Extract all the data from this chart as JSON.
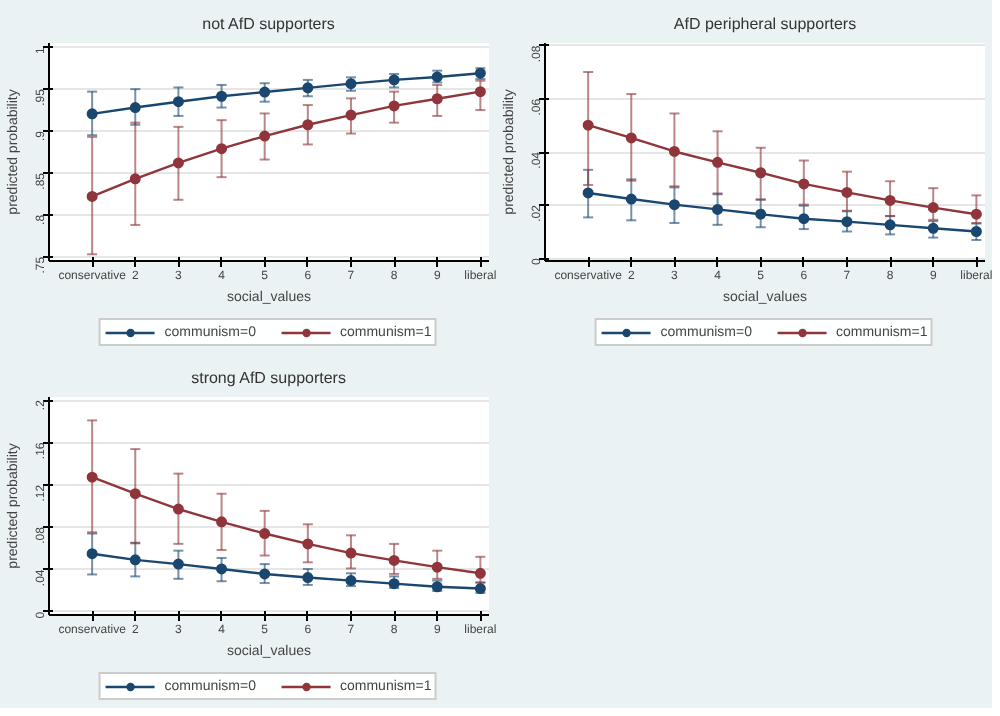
{
  "chart_data": [
    {
      "type": "line",
      "title": "not AfD supporters",
      "xlabel": "social_values",
      "ylabel": "predicted probability",
      "categories": [
        "conservative",
        "2",
        "3",
        "4",
        "5",
        "6",
        "7",
        "8",
        "9",
        "liberal"
      ],
      "ylim": [
        0.745,
        1.005
      ],
      "yticks": [
        {
          "value": 0.75,
          "label": ".75"
        },
        {
          "value": 0.8,
          "label": ".8"
        },
        {
          "value": 0.85,
          "label": ".85"
        },
        {
          "value": 0.9,
          "label": ".9"
        },
        {
          "value": 0.95,
          "label": ".95"
        },
        1
      ],
      "grid": "y",
      "legend": "bottom",
      "marker": "circle",
      "series": [
        {
          "name": "communism=0",
          "color": "#1a476f",
          "values": [
            0.9205,
            0.928,
            0.935,
            0.9415,
            0.9465,
            0.9515,
            0.9565,
            0.961,
            0.9645,
            0.969
          ],
          "errors": [
            [
              0.895,
              0.947
            ],
            [
              0.9075,
              0.95
            ],
            [
              0.918,
              0.952
            ],
            [
              0.928,
              0.955
            ],
            [
              0.935,
              0.957
            ],
            [
              0.9415,
              0.961
            ],
            [
              0.948,
              0.964
            ],
            [
              0.952,
              0.968
            ],
            [
              0.958,
              0.972
            ],
            [
              0.962,
              0.975
            ]
          ]
        },
        {
          "name": "communism=1",
          "color": "#90353b",
          "values": [
            0.822,
            0.843,
            0.862,
            0.879,
            0.894,
            0.9075,
            0.919,
            0.93,
            0.9385,
            0.947
          ],
          "errors": [
            [
              0.753,
              0.893
            ],
            [
              0.788,
              0.91
            ],
            [
              0.818,
              0.905
            ],
            [
              0.845,
              0.913
            ],
            [
              0.866,
              0.921
            ],
            [
              0.884,
              0.931
            ],
            [
              0.897,
              0.939
            ],
            [
              0.91,
              0.947
            ],
            [
              0.918,
              0.955
            ],
            [
              0.925,
              0.96
            ]
          ]
        }
      ]
    },
    {
      "type": "line",
      "title": "AfD peripheral supporters",
      "xlabel": "social_values",
      "ylabel": "predicted probability",
      "categories": [
        "conservative",
        "2",
        "3",
        "4",
        "5",
        "6",
        "7",
        "8",
        "9",
        "liberal"
      ],
      "ylim": [
        -0.001,
        0.081
      ],
      "yticks": [
        0,
        {
          "value": 0.02,
          "label": ".02"
        },
        {
          "value": 0.04,
          "label": ".04"
        },
        {
          "value": 0.06,
          "label": ".06"
        },
        {
          "value": 0.08,
          "label": ".08"
        }
      ],
      "grid": "y",
      "legend": "bottom",
      "marker": "circle",
      "series": [
        {
          "name": "communism=0",
          "color": "#1a476f",
          "values": [
            0.0246,
            0.0223,
            0.0202,
            0.0184,
            0.0166,
            0.0149,
            0.0138,
            0.0126,
            0.0113,
            0.0101
          ],
          "errors": [
            [
              0.0154,
              0.0333
            ],
            [
              0.0143,
              0.0297
            ],
            [
              0.0133,
              0.0267
            ],
            [
              0.0126,
              0.0244
            ],
            [
              0.0117,
              0.0221
            ],
            [
              0.011,
              0.0198
            ],
            [
              0.0101,
              0.0177
            ],
            [
              0.009,
              0.0159
            ],
            [
              0.0078,
              0.014
            ],
            [
              0.0069,
              0.0131
            ]
          ]
        },
        {
          "name": "communism=1",
          "color": "#90353b",
          "values": [
            0.0501,
            0.0453,
            0.0402,
            0.0361,
            0.0322,
            0.028,
            0.0248,
            0.0218,
            0.0191,
            0.0166
          ],
          "errors": [
            [
              0.0276,
              0.0701
            ],
            [
              0.0292,
              0.0618
            ],
            [
              0.0271,
              0.0545
            ],
            [
              0.0241,
              0.0478
            ],
            [
              0.0221,
              0.0416
            ],
            [
              0.0202,
              0.0368
            ],
            [
              0.0179,
              0.0326
            ],
            [
              0.0159,
              0.029
            ],
            [
              0.0145,
              0.0264
            ],
            [
              0.0133,
              0.0237
            ]
          ]
        }
      ]
    },
    {
      "type": "line",
      "title": "strong AfD supporters",
      "xlabel": "social_values",
      "ylabel": "predicted probability",
      "categories": [
        "conservative",
        "2",
        "3",
        "4",
        "5",
        "6",
        "7",
        "8",
        "9",
        "liberal"
      ],
      "ylim": [
        -0.003,
        0.203
      ],
      "yticks": [
        0,
        {
          "value": 0.04,
          "label": ".04"
        },
        {
          "value": 0.08,
          "label": ".08"
        },
        {
          "value": 0.12,
          "label": ".12"
        },
        {
          "value": 0.16,
          "label": ".16"
        },
        {
          "value": 0.2,
          "label": ".2"
        }
      ],
      "grid": "y",
      "legend": "bottom",
      "marker": "circle",
      "series": [
        {
          "name": "communism=0",
          "color": "#1a476f",
          "values": [
            0.0549,
            0.0491,
            0.0451,
            0.0405,
            0.0358,
            0.0324,
            0.0295,
            0.0266,
            0.0237,
            0.022
          ],
          "errors": [
            [
              0.0353,
              0.074
            ],
            [
              0.0335,
              0.0653
            ],
            [
              0.0312,
              0.0578
            ],
            [
              0.0289,
              0.0509
            ],
            [
              0.0272,
              0.0451
            ],
            [
              0.0254,
              0.0405
            ],
            [
              0.0243,
              0.0364
            ],
            [
              0.0225,
              0.0335
            ],
            [
              0.0197,
              0.0295
            ],
            [
              0.0179,
              0.0277
            ]
          ]
        },
        {
          "name": "communism=1",
          "color": "#90353b",
          "values": [
            0.1272,
            0.1116,
            0.0971,
            0.085,
            0.074,
            0.0642,
            0.0555,
            0.0486,
            0.0422,
            0.0364
          ],
          "errors": [
            [
              0.0751,
              0.1809
            ],
            [
              0.0647,
              0.1538
            ],
            [
              0.0642,
              0.1306
            ],
            [
              0.0584,
              0.1116
            ],
            [
              0.0532,
              0.0954
            ],
            [
              0.0468,
              0.0827
            ],
            [
              0.041,
              0.0723
            ],
            [
              0.0358,
              0.0642
            ],
            [
              0.0312,
              0.0578
            ],
            [
              0.0277,
              0.052
            ]
          ]
        }
      ]
    }
  ]
}
